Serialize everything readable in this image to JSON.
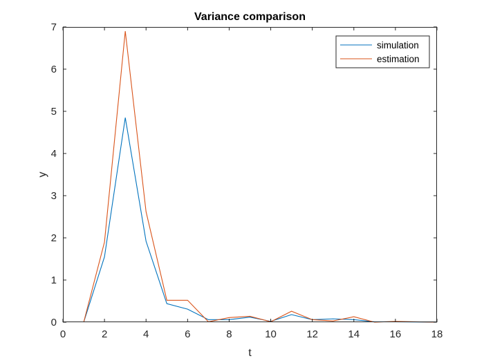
{
  "chart_data": {
    "type": "line",
    "title": "Variance comparison",
    "xlabel": "t",
    "ylabel": "y",
    "xlim": [
      0,
      18
    ],
    "ylim": [
      0,
      7
    ],
    "xticks": [
      "0",
      "2",
      "4",
      "6",
      "8",
      "10",
      "12",
      "14",
      "16",
      "18"
    ],
    "yticks": [
      "0",
      "1",
      "2",
      "3",
      "4",
      "5",
      "6",
      "7"
    ],
    "grid": false,
    "legend_position": "top-right",
    "x": [
      1,
      2,
      3,
      4,
      5,
      6,
      7,
      8,
      9,
      10,
      11,
      12,
      13,
      14,
      15,
      16,
      17,
      18
    ],
    "series": [
      {
        "name": "simulation",
        "color": "#0072BD",
        "values": [
          0,
          1.55,
          4.85,
          1.92,
          0.44,
          0.31,
          0.06,
          0.06,
          0.12,
          0.02,
          0.18,
          0.06,
          0.08,
          0.06,
          0.01,
          0.01,
          0.005,
          0.0
        ]
      },
      {
        "name": "estimation",
        "color": "#D95319",
        "values": [
          0,
          1.9,
          6.9,
          2.62,
          0.52,
          0.52,
          0.01,
          0.11,
          0.14,
          0.01,
          0.26,
          0.06,
          0.03,
          0.13,
          0.0,
          0.02,
          0.01,
          0.0
        ]
      }
    ]
  }
}
